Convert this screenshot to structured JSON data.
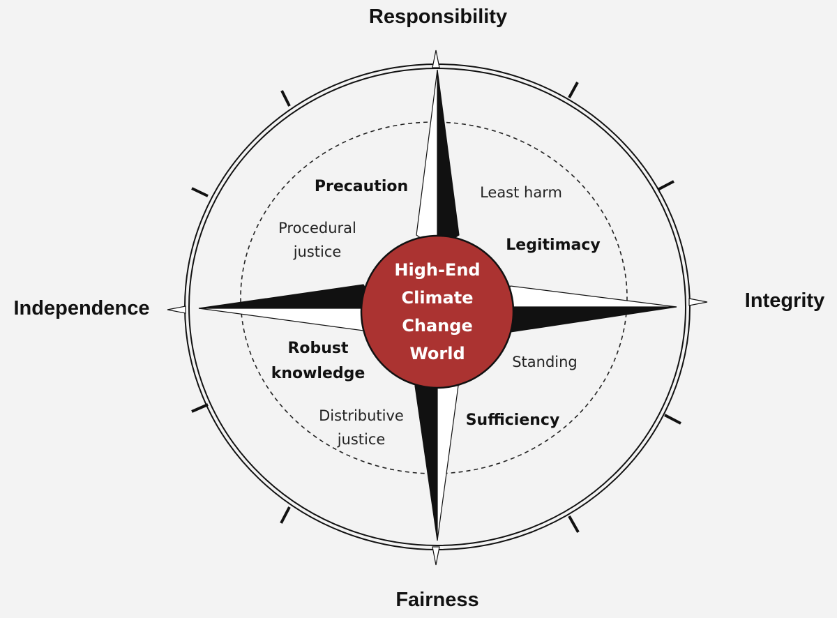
{
  "cardinals": {
    "north": "Responsibility",
    "east": "Integrity",
    "south": "Fairness",
    "west": "Independence"
  },
  "center": {
    "line1": "High-End",
    "line2": "Climate",
    "line3": "Change",
    "line4": "World",
    "color": "#ab3331"
  },
  "principles": {
    "precaution": "Precaution",
    "legitimacy": "Legitimacy",
    "robust_line1": "Robust",
    "robust_line2": "knowledge",
    "sufficiency": "Sufficiency"
  },
  "justice": {
    "least_harm": "Least harm",
    "procedural_line1": "Procedural",
    "procedural_line2": "justice",
    "standing": "Standing",
    "distributive_line1": "Distributive",
    "distributive_line2": "justice"
  }
}
